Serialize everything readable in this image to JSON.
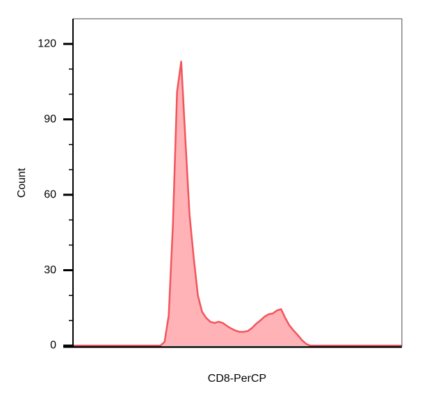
{
  "chart_data": {
    "type": "area",
    "x_label": "CD8-PerCP",
    "y_label": "Count",
    "values": [
      0,
      0,
      0,
      0,
      0,
      0,
      0,
      0,
      0,
      0,
      0,
      0,
      0,
      0,
      0,
      0,
      0,
      0,
      0,
      0,
      0,
      0,
      1.5,
      12,
      48,
      101,
      113,
      82,
      52,
      35,
      20,
      13.5,
      11,
      9.5,
      9,
      9.5,
      9,
      7.8,
      6.8,
      6,
      5.5,
      5.5,
      5.8,
      7,
      8.7,
      10,
      11.5,
      12.5,
      12.8,
      14,
      14.5,
      11,
      8,
      6,
      4.2,
      2.2,
      0.7,
      0,
      0,
      0,
      0,
      0,
      0,
      0,
      0,
      0,
      0,
      0,
      0,
      0,
      0,
      0,
      0,
      0,
      0,
      0,
      0,
      0,
      0,
      0
    ],
    "color": "#f2545b",
    "fill": "#ffb3b6",
    "ylim": [
      0,
      130
    ],
    "yticks": [
      0,
      30,
      60,
      90,
      120
    ],
    "yminorticks": [
      10,
      20,
      40,
      50,
      70,
      80,
      100,
      110
    ]
  }
}
